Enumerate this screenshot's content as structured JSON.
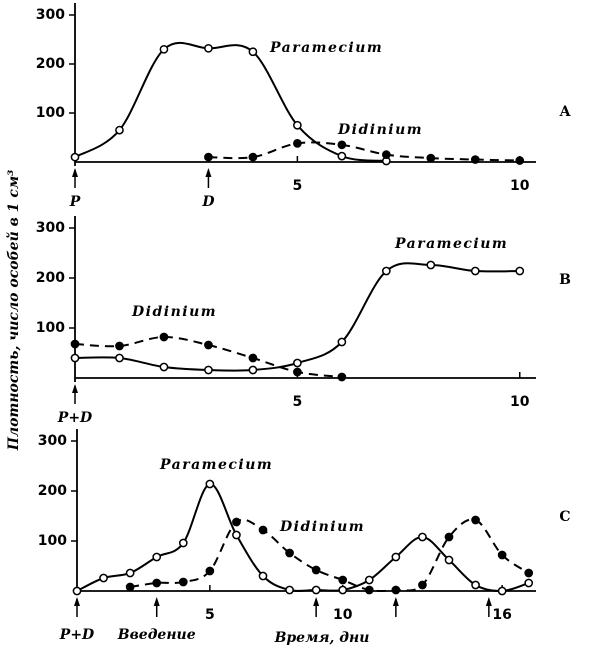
{
  "chart_data": [
    {
      "type": "line",
      "panel_label": "A",
      "xlim": [
        0,
        10.5
      ],
      "xticks": [
        5,
        10
      ],
      "ylim": [
        0,
        300
      ],
      "yticks": [
        100,
        200,
        300
      ],
      "arrows": [
        {
          "x": 0,
          "label": "P"
        },
        {
          "x": 3,
          "label": "D"
        }
      ],
      "series": [
        {
          "name": "Paramecium",
          "color": "#000000",
          "marker": "open",
          "dashed": false,
          "x": [
            0,
            1,
            2,
            3,
            4,
            5,
            6,
            7
          ],
          "values": [
            10,
            65,
            230,
            232,
            225,
            75,
            12,
            2
          ]
        },
        {
          "name": "Didinium",
          "color": "#000000",
          "marker": "filled",
          "dashed": true,
          "x": [
            3,
            4,
            5,
            6,
            7,
            8,
            9,
            10
          ],
          "values": [
            10,
            10,
            38,
            35,
            15,
            8,
            5,
            3
          ]
        }
      ]
    },
    {
      "type": "line",
      "panel_label": "B",
      "ylabel": "Плотность, число особей в 1 см³",
      "xlim": [
        0,
        10.5
      ],
      "xticks": [
        5,
        10
      ],
      "ylim": [
        0,
        300
      ],
      "yticks": [
        100,
        200,
        300
      ],
      "arrows": [
        {
          "x": 0,
          "label": "P+D"
        }
      ],
      "series": [
        {
          "name": "Paramecium",
          "color": "#000000",
          "marker": "open",
          "dashed": false,
          "x": [
            0,
            1,
            2,
            3,
            4,
            5,
            6,
            7,
            8,
            9,
            10
          ],
          "values": [
            40,
            40,
            22,
            16,
            16,
            30,
            72,
            214,
            226,
            214,
            214
          ]
        },
        {
          "name": "Didinium",
          "color": "#000000",
          "marker": "filled",
          "dashed": true,
          "x": [
            0,
            1,
            2,
            3,
            4,
            5,
            6
          ],
          "values": [
            68,
            64,
            82,
            66,
            40,
            12,
            2
          ]
        }
      ]
    },
    {
      "type": "line",
      "panel_label": "C",
      "xlabel": "Время, дни",
      "xlim": [
        0,
        17.5
      ],
      "xticks": [
        5,
        10,
        16
      ],
      "ylim": [
        0,
        300
      ],
      "yticks": [
        100,
        200,
        300
      ],
      "arrows": [
        {
          "x": 0,
          "label": "P+D"
        },
        {
          "x": 3,
          "label": "Введение"
        },
        {
          "x": 9
        },
        {
          "x": 12
        },
        {
          "x": 15.5
        }
      ],
      "series": [
        {
          "name": "Paramecium",
          "color": "#000000",
          "marker": "open",
          "dashed": false,
          "x": [
            0,
            1,
            2,
            3,
            4,
            5,
            6,
            7,
            8,
            9,
            10,
            11,
            12,
            13,
            14,
            15,
            16,
            17
          ],
          "values": [
            0,
            26,
            36,
            68,
            96,
            214,
            112,
            30,
            2,
            2,
            2,
            22,
            68,
            108,
            62,
            12,
            0,
            16
          ]
        },
        {
          "name": "Didinium",
          "color": "#000000",
          "marker": "filled",
          "dashed": true,
          "x": [
            2,
            3,
            4,
            5,
            6,
            7,
            8,
            9,
            10,
            11,
            12,
            13,
            14,
            15,
            16,
            17
          ],
          "values": [
            8,
            16,
            18,
            40,
            138,
            122,
            76,
            42,
            22,
            2,
            2,
            12,
            108,
            142,
            72,
            36
          ]
        }
      ]
    }
  ]
}
